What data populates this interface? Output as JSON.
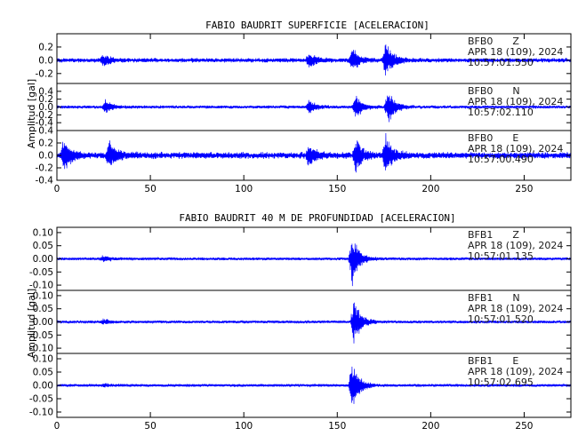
{
  "chart_data": [
    {
      "type": "line",
      "title": "FABIO BAUDRIT SUPERFICIE [ACELERACION]",
      "ylabel": "Amplitud [gal]",
      "xlabel": "",
      "xlim": [
        0,
        275
      ],
      "xticks": [
        0,
        50,
        100,
        150,
        200,
        250
      ],
      "grid": false,
      "line_color": "#0000ff",
      "traces": [
        {
          "station": "BFB0",
          "channel": "Z",
          "date": "APR 18 (109), 2024",
          "time": "10:57:01.550",
          "ylim": [
            -0.35,
            0.4
          ],
          "yticks": [
            -0.2,
            0.0,
            0.2
          ],
          "ytick_labels": [
            "-0.2",
            "0.0",
            "0.2"
          ],
          "noise": 0.025,
          "events": [
            {
              "t": 25,
              "amp": 0.1
            },
            {
              "t": 135,
              "amp": 0.14
            },
            {
              "t": 158,
              "amp": 0.2
            },
            {
              "t": 176,
              "amp": 0.32
            }
          ]
        },
        {
          "station": "BFB0",
          "channel": "N",
          "date": "APR 18 (109), 2024",
          "time": "10:57:02.110",
          "ylim": [
            -0.6,
            0.6
          ],
          "yticks": [
            -0.4,
            -0.2,
            0.0,
            0.2,
            0.4
          ],
          "ytick_labels": [
            "-0.4",
            "-0.2",
            "0.0",
            "0.2",
            "0.4"
          ],
          "noise": 0.03,
          "events": [
            {
              "t": 26,
              "amp": 0.2
            },
            {
              "t": 135,
              "amp": 0.2
            },
            {
              "t": 160,
              "amp": 0.35
            },
            {
              "t": 177,
              "amp": 0.5
            }
          ]
        },
        {
          "station": "BFB0",
          "channel": "E",
          "date": "APR 18 (109), 2024",
          "time": "10:57:00.490",
          "ylim": [
            -0.4,
            0.4
          ],
          "yticks": [
            -0.4,
            -0.2,
            0.0,
            0.2,
            0.4
          ],
          "ytick_labels": [
            "-0.4",
            "-0.2",
            "0.0",
            "0.2",
            "0.4"
          ],
          "noise": 0.04,
          "events": [
            {
              "t": 4,
              "amp": 0.3
            },
            {
              "t": 28,
              "amp": 0.25
            },
            {
              "t": 135,
              "amp": 0.2
            },
            {
              "t": 160,
              "amp": 0.32
            },
            {
              "t": 176,
              "amp": 0.35
            }
          ]
        }
      ]
    },
    {
      "type": "line",
      "title": "FABIO BAUDRIT 40 M DE PROFUNDIDAD [ACELERACION]",
      "ylabel": "Amplitud [gal]",
      "xlabel": "",
      "xlim": [
        0,
        275
      ],
      "xticks": [
        0,
        50,
        100,
        150,
        200,
        250
      ],
      "grid": false,
      "line_color": "#0000ff",
      "traces": [
        {
          "station": "BFB1",
          "channel": "Z",
          "date": "APR 18 (109), 2024",
          "time": "10:57:01.135",
          "ylim": [
            -0.12,
            0.12
          ],
          "yticks": [
            -0.1,
            -0.05,
            0.0,
            0.05,
            0.1
          ],
          "ytick_labels": [
            "-0.10",
            "-0.05",
            "0.00",
            "0.05",
            "0.10"
          ],
          "noise": 0.004,
          "events": [
            {
              "t": 25,
              "amp": 0.012
            },
            {
              "t": 158,
              "amp": 0.11
            }
          ]
        },
        {
          "station": "BFB1",
          "channel": "N",
          "date": "APR 18 (109), 2024",
          "time": "10:57:01.520",
          "ylim": [
            -0.12,
            0.12
          ],
          "yticks": [
            -0.1,
            -0.05,
            0.0,
            0.05,
            0.1
          ],
          "ytick_labels": [
            "-0.10",
            "-0.05",
            "0.00",
            "0.05",
            "0.10"
          ],
          "noise": 0.004,
          "events": [
            {
              "t": 25,
              "amp": 0.01
            },
            {
              "t": 159,
              "amp": 0.1
            }
          ]
        },
        {
          "station": "BFB1",
          "channel": "E",
          "date": "APR 18 (109), 2024",
          "time": "10:57:02.695",
          "ylim": [
            -0.12,
            0.12
          ],
          "yticks": [
            -0.1,
            -0.05,
            0.0,
            0.05,
            0.1
          ],
          "ytick_labels": [
            "-0.10",
            "-0.05",
            "0.00",
            "0.05",
            "0.10"
          ],
          "noise": 0.004,
          "events": [
            {
              "t": 25,
              "amp": 0.008
            },
            {
              "t": 158,
              "amp": 0.11
            }
          ]
        }
      ]
    }
  ]
}
